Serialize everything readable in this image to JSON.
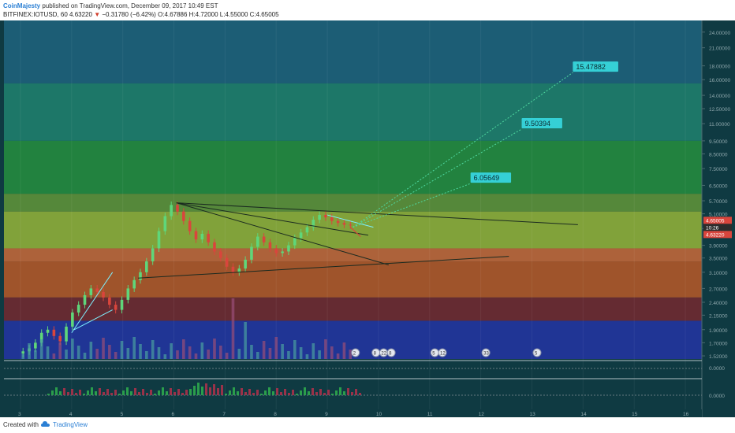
{
  "header": {
    "author": "CoinMajesty",
    "published_text": "published on TradingView.com, December 09, 2017 10:49 EST",
    "symbol": "BITFINEX:IOTUSD, 60",
    "last_price": "4.63220",
    "change": "−0.31780 (−6.42%)",
    "ohlc": "O:4.67886 H:4.72000 L:4.55000 C:4.65005"
  },
  "footer": {
    "created_with": "Created with",
    "brand": "TradingView",
    "logo_icon": "tradingview-cloud-icon"
  },
  "colors": {
    "background": "#0f3a42",
    "up_candle": "#5fd67a",
    "down_candle": "#d9453c",
    "target_label_bg": "#35d0d6",
    "price_tag_red": "#d9453c"
  },
  "chart_data": {
    "type": "candlestick",
    "y_scale": "log",
    "y_axis_ticks": [
      "24.00000",
      "21.00000",
      "18.00000",
      "16.00000",
      "14.00000",
      "12.50000",
      "11.00000",
      "9.50000",
      "8.50000",
      "7.50000",
      "6.50000",
      "5.70000",
      "5.10000",
      "4.50000",
      "3.90000",
      "3.50000",
      "3.10000",
      "2.70000",
      "2.40000",
      "2.15000",
      "1.90000",
      "1.70000",
      "1.52000"
    ],
    "x_axis_ticks": [
      "3",
      "4",
      "5",
      "6",
      "7",
      "8",
      "9",
      "10",
      "11",
      "12",
      "13",
      "14",
      "15",
      "16"
    ],
    "x_range": [
      2.8,
      16.2
    ],
    "y_range": [
      1.48,
      26.5
    ],
    "price_tags": {
      "upper": "4.65005",
      "time": "10:26",
      "lower": "4.63220"
    },
    "zones": [
      {
        "from": 15.5,
        "to": 26.5,
        "color": "#1d5f78"
      },
      {
        "from": 9.5,
        "to": 15.5,
        "color": "#1f7a6a"
      },
      {
        "from": 6.05,
        "to": 9.5,
        "color": "#24863f"
      },
      {
        "from": 5.2,
        "to": 6.05,
        "color": "#5a8c3a"
      },
      {
        "from": 3.8,
        "to": 5.2,
        "color": "#88a83a"
      },
      {
        "from": 3.4,
        "to": 3.8,
        "color": "#b6643a"
      },
      {
        "from": 2.5,
        "to": 3.4,
        "color": "#a8552a"
      },
      {
        "from": 2.05,
        "to": 2.5,
        "color": "#6a2a32"
      },
      {
        "from": 1.48,
        "to": 2.05,
        "color": "#22359a"
      }
    ],
    "targets": [
      {
        "label": "15.47882",
        "x": 13.8,
        "y": 17.0
      },
      {
        "label": "9.50394",
        "x": 12.8,
        "y": 10.5
      },
      {
        "label": "6.05649",
        "x": 11.8,
        "y": 6.6
      }
    ],
    "closes": [
      1.58,
      1.62,
      1.7,
      1.85,
      1.9,
      1.8,
      1.72,
      1.95,
      2.2,
      2.35,
      2.55,
      2.7,
      2.62,
      2.5,
      2.35,
      2.25,
      2.45,
      2.7,
      2.9,
      3.1,
      3.4,
      3.8,
      4.4,
      5.0,
      5.5,
      5.2,
      4.8,
      4.4,
      4.1,
      4.3,
      4.0,
      3.7,
      3.5,
      3.25,
      3.1,
      3.2,
      3.45,
      3.85,
      4.2,
      4.0,
      3.8,
      3.65,
      3.7,
      3.9,
      4.15,
      4.35,
      4.55,
      4.85,
      5.05,
      4.95,
      4.8,
      4.72,
      4.65,
      4.63
    ],
    "volume_pane": {
      "ticks": []
    },
    "indicator_pane": {
      "ticks": [
        "0.0000",
        "0.0000"
      ]
    },
    "event_badges": [
      "2",
      "8",
      "22",
      "8",
      "5",
      "12",
      "33",
      "5"
    ]
  }
}
